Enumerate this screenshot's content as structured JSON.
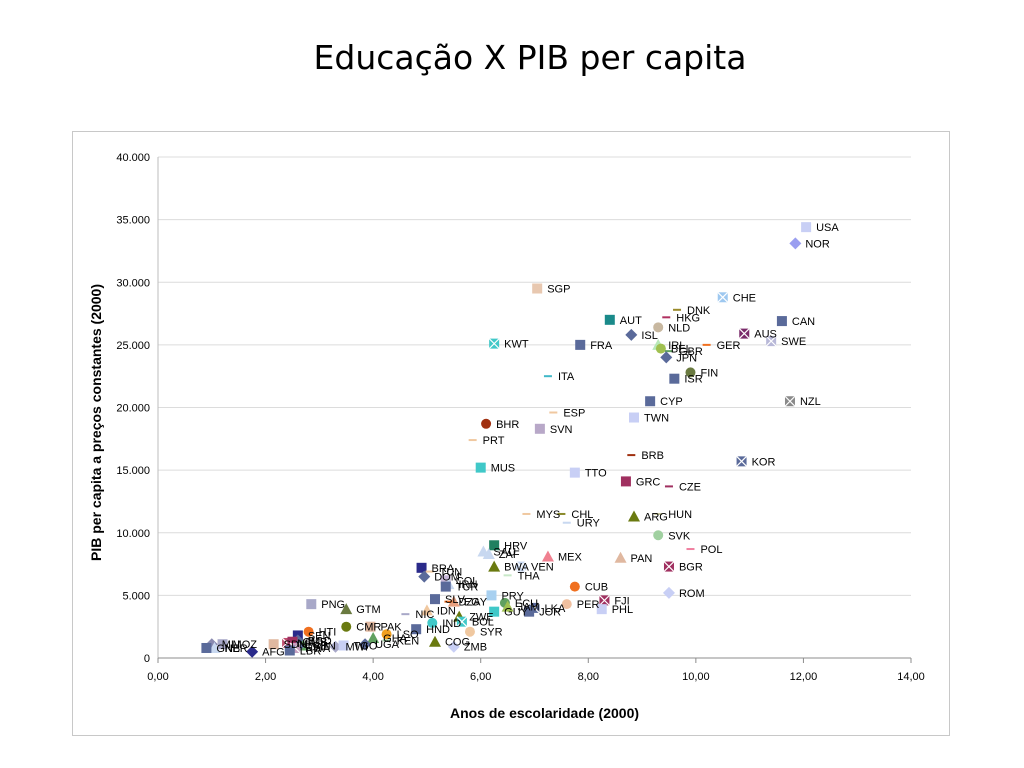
{
  "slide": {
    "title": "Educação X PIB per capita"
  },
  "chart_data": {
    "type": "scatter",
    "xlabel": "Anos de escolaridade (2000)",
    "ylabel": "PIB per capita a preços constantes (2000)",
    "xlim": [
      0,
      14
    ],
    "ylim": [
      0,
      40000
    ],
    "x_ticks": [
      0,
      2,
      4,
      6,
      8,
      10,
      12,
      14
    ],
    "x_tick_labels": [
      "0,00",
      "2,00",
      "4,00",
      "6,00",
      "8,00",
      "10,00",
      "12,00",
      "14,00"
    ],
    "y_ticks": [
      0,
      5000,
      10000,
      15000,
      20000,
      25000,
      30000,
      35000,
      40000
    ],
    "y_tick_labels": [
      "0",
      "5.000",
      "10.000",
      "15.000",
      "20.000",
      "25.000",
      "30.000",
      "35.000",
      "40.000"
    ],
    "grid": "horizontal",
    "legend": "none",
    "points": [
      {
        "label": "USA",
        "x": 12.05,
        "y": 34400,
        "marker": "square",
        "color": "#c8cff5"
      },
      {
        "label": "NOR",
        "x": 11.85,
        "y": 33100,
        "marker": "diamond",
        "color": "#9a9ef0"
      },
      {
        "label": "SGP",
        "x": 7.05,
        "y": 29500,
        "marker": "square",
        "color": "#e8c8b0"
      },
      {
        "label": "CHE",
        "x": 10.5,
        "y": 28800,
        "marker": "x",
        "color": "#9ec8f0"
      },
      {
        "label": "DNK",
        "x": 9.65,
        "y": 27800,
        "marker": "dash",
        "color": "#9a8a2a"
      },
      {
        "label": "HKG",
        "x": 9.45,
        "y": 27200,
        "marker": "dash",
        "color": "#b03060"
      },
      {
        "label": "AUT",
        "x": 8.4,
        "y": 27000,
        "marker": "square",
        "color": "#1a8a8a"
      },
      {
        "label": "CAN",
        "x": 11.6,
        "y": 26900,
        "marker": "square",
        "color": "#5a6a9a"
      },
      {
        "label": "NLD",
        "x": 9.3,
        "y": 26400,
        "marker": "circle",
        "color": "#c8b8a0"
      },
      {
        "label": "AUS",
        "x": 10.9,
        "y": 25900,
        "marker": "x",
        "color": "#7a2a6a"
      },
      {
        "label": "ISL",
        "x": 8.8,
        "y": 25800,
        "marker": "diamond",
        "color": "#5a6a9a"
      },
      {
        "label": "SWE",
        "x": 11.4,
        "y": 25300,
        "marker": "x",
        "color": "#b8b8d8"
      },
      {
        "label": "KWT",
        "x": 6.25,
        "y": 25100,
        "marker": "x",
        "color": "#40c8c8"
      },
      {
        "label": "FRA",
        "x": 7.85,
        "y": 25000,
        "marker": "square",
        "color": "#5a6a9a"
      },
      {
        "label": "GER",
        "x": 10.2,
        "y": 25000,
        "marker": "dash",
        "color": "#f07020"
      },
      {
        "label": "IRL",
        "x": 9.3,
        "y": 25000,
        "marker": "triangle",
        "color": "#b8e8b8"
      },
      {
        "label": "BEL",
        "x": 9.35,
        "y": 24700,
        "marker": "circle",
        "color": "#a0c050"
      },
      {
        "label": "GBR",
        "x": 9.5,
        "y": 24500,
        "marker": "dash",
        "color": "#60a060"
      },
      {
        "label": "JPN",
        "x": 9.45,
        "y": 24000,
        "marker": "diamond",
        "color": "#5a6a9a"
      },
      {
        "label": "FIN",
        "x": 9.9,
        "y": 22800,
        "marker": "circle",
        "color": "#6a7a40"
      },
      {
        "label": "ITA",
        "x": 7.25,
        "y": 22500,
        "marker": "dash",
        "color": "#40b8c8"
      },
      {
        "label": "ISR",
        "x": 9.6,
        "y": 22300,
        "marker": "square",
        "color": "#5a6a9a"
      },
      {
        "label": "CYP",
        "x": 9.15,
        "y": 20500,
        "marker": "square",
        "color": "#5a6a9a"
      },
      {
        "label": "NZL",
        "x": 11.75,
        "y": 20500,
        "marker": "x",
        "color": "#8a8a8a"
      },
      {
        "label": "ESP",
        "x": 7.35,
        "y": 19600,
        "marker": "dash",
        "color": "#f0c8a0"
      },
      {
        "label": "TWN",
        "x": 8.85,
        "y": 19200,
        "marker": "square",
        "color": "#c8cff5"
      },
      {
        "label": "BHR",
        "x": 6.1,
        "y": 18700,
        "marker": "circle",
        "color": "#a03010"
      },
      {
        "label": "SVN",
        "x": 7.1,
        "y": 18300,
        "marker": "square",
        "color": "#b8a8c8"
      },
      {
        "label": "PRT",
        "x": 5.85,
        "y": 17400,
        "marker": "dash",
        "color": "#f0c8a0"
      },
      {
        "label": "BRB",
        "x": 8.8,
        "y": 16200,
        "marker": "dash",
        "color": "#a03010"
      },
      {
        "label": "KOR",
        "x": 10.85,
        "y": 15700,
        "marker": "x",
        "color": "#5a6a9a"
      },
      {
        "label": "MUS",
        "x": 6.0,
        "y": 15200,
        "marker": "square",
        "color": "#40c8c8"
      },
      {
        "label": "TTO",
        "x": 7.75,
        "y": 14800,
        "marker": "square",
        "color": "#c8cff5"
      },
      {
        "label": "GRC",
        "x": 8.7,
        "y": 14100,
        "marker": "square",
        "color": "#a03060"
      },
      {
        "label": "CZE",
        "x": 9.5,
        "y": 13700,
        "marker": "dash",
        "color": "#a03060"
      },
      {
        "label": "MYS",
        "x": 6.85,
        "y": 11500,
        "marker": "dash",
        "color": "#f0c8a0"
      },
      {
        "label": "CHL",
        "x": 7.5,
        "y": 11500,
        "marker": "dash",
        "color": "#8a8a2a"
      },
      {
        "label": "HUN",
        "x": 9.3,
        "y": 11500,
        "marker": "dash",
        "color": "#c8c8a0"
      },
      {
        "label": "ARG",
        "x": 8.85,
        "y": 11300,
        "marker": "triangle",
        "color": "#6a7a10"
      },
      {
        "label": "URY",
        "x": 7.6,
        "y": 10800,
        "marker": "dash",
        "color": "#c8d8f0"
      },
      {
        "label": "SVK",
        "x": 9.3,
        "y": 9800,
        "marker": "circle",
        "color": "#a0d0a0"
      },
      {
        "label": "HRV",
        "x": 6.25,
        "y": 9000,
        "marker": "square",
        "color": "#208060"
      },
      {
        "label": "POL",
        "x": 9.9,
        "y": 8700,
        "marker": "dash",
        "color": "#f080a0"
      },
      {
        "label": "SAU",
        "x": 6.05,
        "y": 8500,
        "marker": "triangle",
        "color": "#c8d8f0"
      },
      {
        "label": "ZAF",
        "x": 6.15,
        "y": 8300,
        "marker": "triangle",
        "color": "#c8d8f0"
      },
      {
        "label": "MEX",
        "x": 7.25,
        "y": 8100,
        "marker": "triangle",
        "color": "#f08090"
      },
      {
        "label": "PAN",
        "x": 8.6,
        "y": 8000,
        "marker": "triangle",
        "color": "#e0b8a0"
      },
      {
        "label": "VEN",
        "x": 6.75,
        "y": 7300,
        "marker": "x",
        "color": "#c8d8f0"
      },
      {
        "label": "BWA",
        "x": 6.25,
        "y": 7300,
        "marker": "triangle",
        "color": "#6a7a10"
      },
      {
        "label": "BGR",
        "x": 9.5,
        "y": 7300,
        "marker": "x",
        "color": "#a03060"
      },
      {
        "label": "BRA",
        "x": 4.9,
        "y": 7200,
        "marker": "square",
        "color": "#2a2a8a"
      },
      {
        "label": "TUN",
        "x": 5.05,
        "y": 6900,
        "marker": "dash",
        "color": "#f0c8a0"
      },
      {
        "label": "THA",
        "x": 6.5,
        "y": 6600,
        "marker": "dash",
        "color": "#c8e8c8"
      },
      {
        "label": "DOM",
        "x": 4.95,
        "y": 6500,
        "marker": "diamond",
        "color": "#5a6a9a"
      },
      {
        "label": "COL",
        "x": 5.35,
        "y": 6200,
        "marker": "square",
        "color": "#c8b8d8"
      },
      {
        "label": "IRN",
        "x": 5.4,
        "y": 5900,
        "marker": "triangle",
        "color": "#c8d8f0"
      },
      {
        "label": "TUR",
        "x": 5.35,
        "y": 5700,
        "marker": "square",
        "color": "#5a6a9a"
      },
      {
        "label": "CUB",
        "x": 7.75,
        "y": 5700,
        "marker": "circle",
        "color": "#f07020"
      },
      {
        "label": "ROM",
        "x": 9.5,
        "y": 5200,
        "marker": "diamond",
        "color": "#c8cff5"
      },
      {
        "label": "PRY",
        "x": 6.2,
        "y": 5000,
        "marker": "square",
        "color": "#a8d0f0"
      },
      {
        "label": "SLV",
        "x": 5.15,
        "y": 4700,
        "marker": "square",
        "color": "#5a6a9a"
      },
      {
        "label": "EGY",
        "x": 5.5,
        "y": 4500,
        "marker": "triangle",
        "color": "#e8a080"
      },
      {
        "label": "DZA",
        "x": 5.4,
        "y": 4500,
        "marker": "dash",
        "color": "#f07020"
      },
      {
        "label": "FJI",
        "x": 8.3,
        "y": 4600,
        "marker": "x",
        "color": "#a03060"
      },
      {
        "label": "PNG",
        "x": 2.85,
        "y": 4300,
        "marker": "square",
        "color": "#a8a8c8"
      },
      {
        "label": "ECU",
        "x": 6.45,
        "y": 4400,
        "marker": "circle",
        "color": "#60a060"
      },
      {
        "label": "PER",
        "x": 7.6,
        "y": 4300,
        "marker": "circle",
        "color": "#f0c0a0"
      },
      {
        "label": "JAM",
        "x": 6.5,
        "y": 4100,
        "marker": "triangle",
        "color": "#a0c050"
      },
      {
        "label": "LKA",
        "x": 7.0,
        "y": 4000,
        "marker": "x",
        "color": "#5a6a9a"
      },
      {
        "label": "PHL",
        "x": 8.25,
        "y": 3900,
        "marker": "square",
        "color": "#c8cff5"
      },
      {
        "label": "GTM",
        "x": 3.5,
        "y": 3900,
        "marker": "triangle",
        "color": "#6a7a40"
      },
      {
        "label": "IDN",
        "x": 5.0,
        "y": 3800,
        "marker": "triangle",
        "color": "#f0c8a0"
      },
      {
        "label": "GUY",
        "x": 6.25,
        "y": 3700,
        "marker": "square",
        "color": "#40c8c8"
      },
      {
        "label": "JOR",
        "x": 6.9,
        "y": 3700,
        "marker": "square",
        "color": "#5a6a9a"
      },
      {
        "label": "NIC",
        "x": 4.6,
        "y": 3500,
        "marker": "dash",
        "color": "#a8a8c8"
      },
      {
        "label": "ZWE",
        "x": 5.6,
        "y": 3300,
        "marker": "triangle",
        "color": "#6a7a10"
      },
      {
        "label": "BOL",
        "x": 5.65,
        "y": 2900,
        "marker": "x",
        "color": "#40c8c8"
      },
      {
        "label": "IND",
        "x": 5.1,
        "y": 2800,
        "marker": "circle",
        "color": "#40c8c8"
      },
      {
        "label": "CMR",
        "x": 3.5,
        "y": 2500,
        "marker": "circle",
        "color": "#6a7a10"
      },
      {
        "label": "PAK",
        "x": 3.95,
        "y": 2500,
        "marker": "square",
        "color": "#e0b8a0"
      },
      {
        "label": "HND",
        "x": 4.8,
        "y": 2300,
        "marker": "square",
        "color": "#5a6a9a"
      },
      {
        "label": "SYR",
        "x": 5.8,
        "y": 2100,
        "marker": "circle",
        "color": "#f0c8a0"
      },
      {
        "label": "HTI",
        "x": 2.8,
        "y": 2100,
        "marker": "circle",
        "color": "#f07020"
      },
      {
        "label": "LSO",
        "x": 4.25,
        "y": 1900,
        "marker": "circle",
        "color": "#f0a020"
      },
      {
        "label": "SEN",
        "x": 2.6,
        "y": 1800,
        "marker": "square",
        "color": "#2a2a8a"
      },
      {
        "label": "GHA",
        "x": 4.0,
        "y": 1600,
        "marker": "triangle",
        "color": "#60a060"
      },
      {
        "label": "KEN",
        "x": 4.25,
        "y": 1400,
        "marker": "dash",
        "color": "#a0d0a0"
      },
      {
        "label": "COG",
        "x": 5.15,
        "y": 1300,
        "marker": "triangle",
        "color": "#6a7a10"
      },
      {
        "label": "BGD",
        "x": 2.6,
        "y": 1400,
        "marker": "diamond",
        "color": "#5a6a9a"
      },
      {
        "label": "UGA",
        "x": 3.85,
        "y": 1100,
        "marker": "diamond",
        "color": "#5a6a9a"
      },
      {
        "label": "NPL",
        "x": 2.4,
        "y": 1200,
        "marker": "x",
        "color": "#c05070"
      },
      {
        "label": "GMB",
        "x": 2.5,
        "y": 1300,
        "marker": "square",
        "color": "#a03060"
      },
      {
        "label": "MWI",
        "x": 3.3,
        "y": 900,
        "marker": "diamond",
        "color": "#a8a8c8"
      },
      {
        "label": "TGO",
        "x": 3.45,
        "y": 1000,
        "marker": "square",
        "color": "#c8cff5"
      },
      {
        "label": "ZMB",
        "x": 5.5,
        "y": 900,
        "marker": "diamond",
        "color": "#c8cff5"
      },
      {
        "label": "SDN",
        "x": 2.15,
        "y": 1100,
        "marker": "square",
        "color": "#e0b8a0"
      },
      {
        "label": "BEN",
        "x": 2.7,
        "y": 1000,
        "marker": "triangle",
        "color": "#60a060"
      },
      {
        "label": "CAF",
        "x": 2.6,
        "y": 900,
        "marker": "diamond",
        "color": "#5a6a9a"
      },
      {
        "label": "RWA",
        "x": 2.55,
        "y": 800,
        "marker": "x",
        "color": "#c8a0c0"
      },
      {
        "label": "MLI",
        "x": 1.0,
        "y": 1100,
        "marker": "diamond",
        "color": "#8a8ab0"
      },
      {
        "label": "MOZ",
        "x": 1.2,
        "y": 1100,
        "marker": "square",
        "color": "#a8a8c8"
      },
      {
        "label": "NER",
        "x": 1.05,
        "y": 800,
        "marker": "triangle",
        "color": "#c8d8f0"
      },
      {
        "label": "GNB",
        "x": 0.9,
        "y": 800,
        "marker": "square",
        "color": "#5a6a9a"
      },
      {
        "label": "AFG",
        "x": 1.75,
        "y": 500,
        "marker": "diamond",
        "color": "#2a2a8a"
      },
      {
        "label": "LBR",
        "x": 2.45,
        "y": 600,
        "marker": "square",
        "color": "#5a6a9a"
      }
    ]
  }
}
